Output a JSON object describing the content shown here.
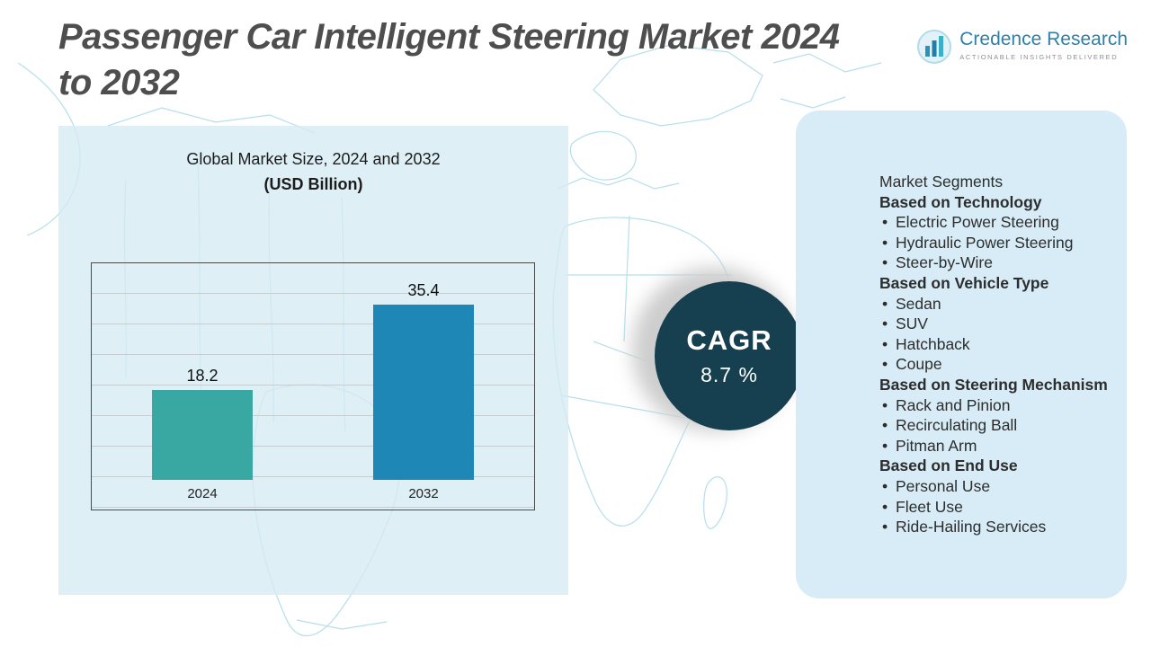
{
  "title": {
    "line1": "Passenger Car Intelligent Steering Market 2024",
    "line2": "to 2032"
  },
  "logo": {
    "brand": "Credence Research",
    "tagline": "Actionable Insights Delivered"
  },
  "chart_data": {
    "type": "bar",
    "title": "Global Market Size, 2024 and 2032",
    "subtitle": "(USD Billion)",
    "categories": [
      "2024",
      "2032"
    ],
    "values": [
      18.2,
      35.4
    ],
    "ylim": [
      0,
      40
    ],
    "grid": true,
    "legend": "none",
    "colors": [
      "#3aa8a2",
      "#1f87b5"
    ]
  },
  "cagr": {
    "label": "CAGR",
    "value": "8.7 %"
  },
  "segments": {
    "title": "Market Segments",
    "groups": [
      {
        "heading": "Based on Technology",
        "items": [
          "Electric Power Steering",
          "Hydraulic Power Steering",
          "Steer-by-Wire"
        ]
      },
      {
        "heading": "Based on Vehicle Type",
        "items": [
          "Sedan",
          "SUV",
          "Hatchback",
          "Coupe"
        ]
      },
      {
        "heading": "Based on Steering Mechanism",
        "items": [
          "Rack and Pinion",
          "Recirculating Ball",
          "Pitman Arm"
        ]
      },
      {
        "heading": "Based on End Use",
        "items": [
          "Personal Use",
          "Fleet Use",
          "Ride-Hailing Services"
        ]
      }
    ]
  },
  "colors": {
    "title_text": "#4e4e4e",
    "panel_bg": "#d5ebf4",
    "card_bg": "#d7ecf6",
    "cagr_circle": "#16404f",
    "bar_2024": "#3aa8a2",
    "bar_2032": "#1f87b5",
    "map_stroke": "#b5dfeb",
    "brand_text": "#2f80a9"
  }
}
